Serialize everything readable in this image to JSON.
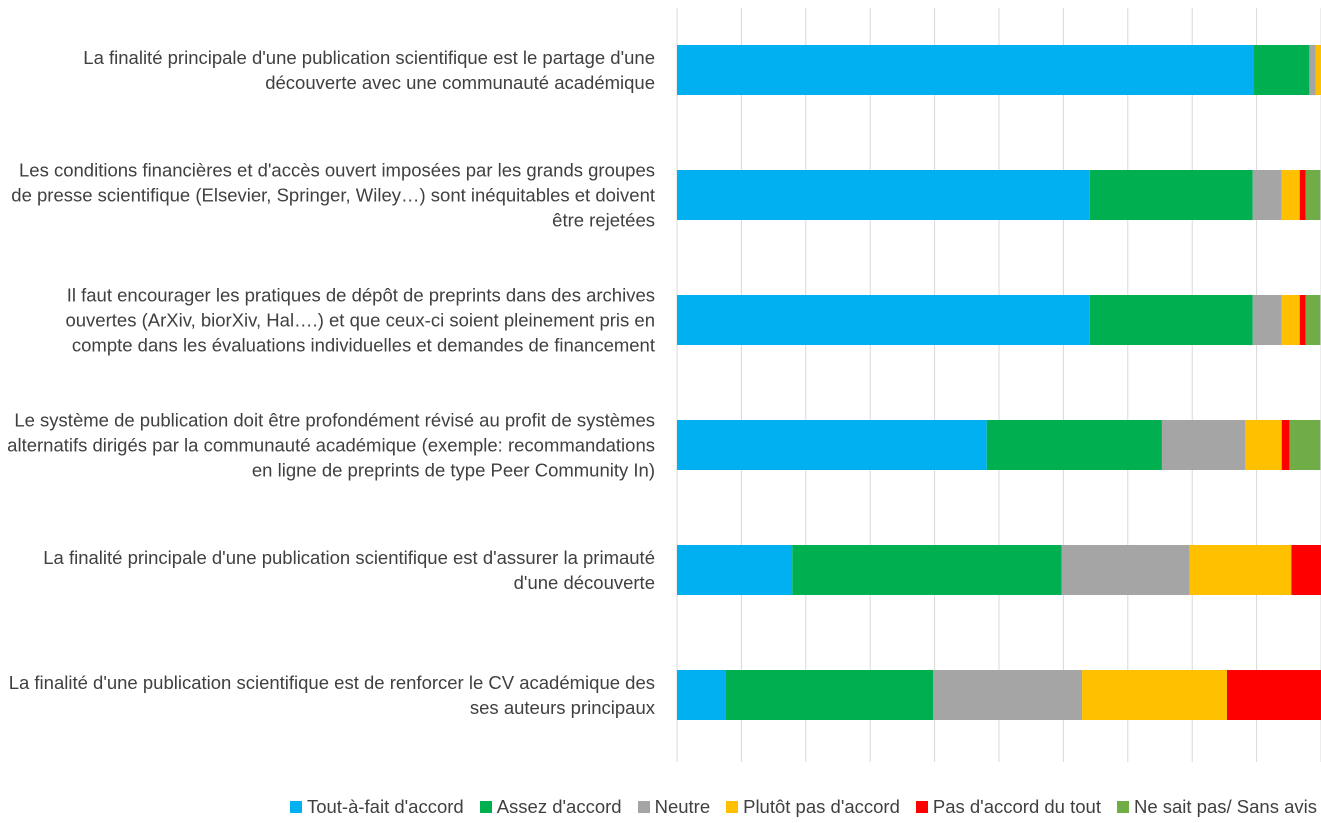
{
  "chart_data": {
    "type": "stacked_barh",
    "categories": [
      "La finalité principale d'une publication scientifique est le partage d'une découverte avec une communauté académique",
      "Les conditions financières et d'accès ouvert imposées par les grands groupes de presse scientifique (Elsevier, Springer, Wiley…) sont inéquitables et doivent être rejetées",
      "Il faut encourager les pratiques de dépôt de preprints dans des archives ouvertes (ArXiv, biorXiv, Hal….) et que ceux-ci soient pleinement pris en compte dans les évaluations individuelles et demandes de financement",
      "Le système de publication doit être profondément révisé au profit de systèmes alternatifs dirigés par la communauté académique (exemple: recommandations en ligne de preprints de type Peer Community In)",
      "La finalité principale d'une publication scientifique est d'assurer la primauté d'une découverte",
      "La finalité d'une publication scientifique est de renforcer le CV académique des ses auteurs principaux"
    ],
    "series": [
      {
        "name": "Tout-à-fait d'accord",
        "color": "#00b0f0",
        "values": [
          89.5,
          64.1,
          64.1,
          48.1,
          17.9,
          7.5
        ]
      },
      {
        "name": "Assez d'accord",
        "color": "#00b050",
        "values": [
          8.7,
          25.3,
          25.3,
          27.2,
          41.8,
          32.3
        ]
      },
      {
        "name": "Neutre",
        "color": "#a5a5a5",
        "values": [
          1.0,
          4.5,
          4.5,
          12.9,
          19.9,
          23.1
        ]
      },
      {
        "name": "Plutôt pas d'accord",
        "color": "#ffc000",
        "values": [
          0.8,
          2.8,
          2.8,
          5.7,
          15.8,
          22.5
        ]
      },
      {
        "name": "Pas d'accord du tout",
        "color": "#ff0000",
        "values": [
          0,
          0.9,
          0.9,
          1.2,
          4.7,
          14.6
        ]
      },
      {
        "name": "Ne sait pas/ Sans avis",
        "color": "#70ad47",
        "values": [
          0,
          2.3,
          2.3,
          4.8,
          0,
          0
        ]
      }
    ],
    "xlim": [
      0,
      100
    ],
    "xticks": [
      0,
      10,
      20,
      30,
      40,
      50,
      60,
      70,
      80,
      90,
      100
    ],
    "grid": true,
    "legend": "bottom"
  }
}
